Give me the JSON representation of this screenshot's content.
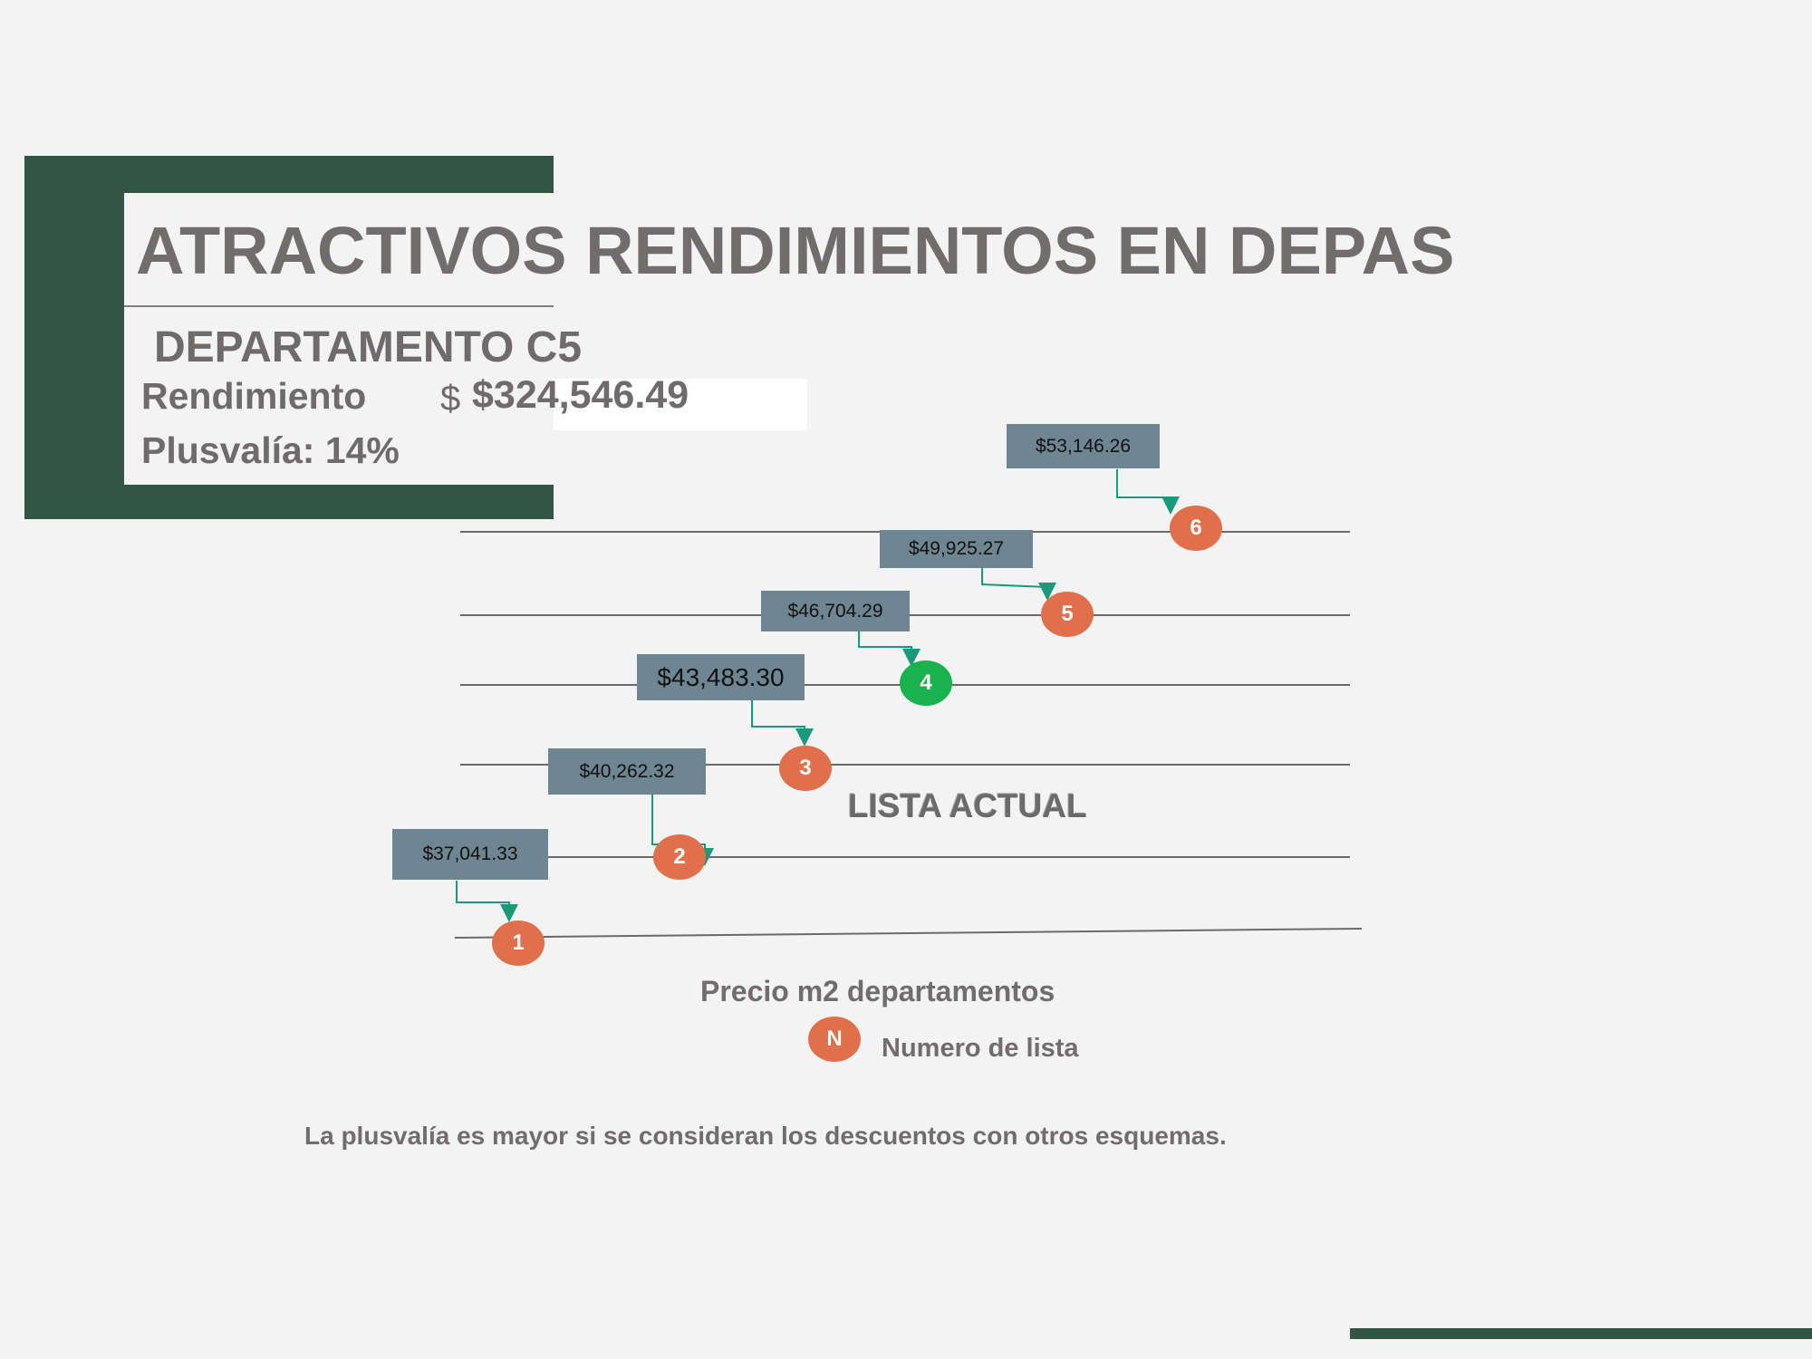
{
  "title": "ATRACTIVOS RENDIMIENTOS EN DEPAS",
  "department": "DEPARTAMENTO C5",
  "rendimiento_label": "Rendimiento",
  "rendimiento_currency": "$",
  "rendimiento_value": "$324,546.49",
  "plusvalia_label": "Plusvalía: 14%",
  "lists": [
    {
      "number": "1",
      "price": "$37,041.33",
      "current": false
    },
    {
      "number": "2",
      "price": "$40,262.32",
      "current": false
    },
    {
      "number": "3",
      "price": "$43,483.30",
      "current": false
    },
    {
      "number": "4",
      "price": "$46,704.29",
      "current": true
    },
    {
      "number": "5",
      "price": "$49,925.27",
      "current": false
    },
    {
      "number": "6",
      "price": "$53,146.26",
      "current": false
    }
  ],
  "current_list_label": "LISTA ACTUAL",
  "legend": {
    "title": "Precio m2 departamentos",
    "badge": "N",
    "label": "Numero de lista"
  },
  "footnote": "La plusvalía es mayor si se consideran los descuentos con otros esquemas.",
  "colors": {
    "dark_green": "#335545",
    "badge_orange": "#e0704c",
    "badge_current": "#19b24f",
    "price_box": "#6e8592",
    "arrow": "#1a9a7a",
    "text_gray": "#716d6d"
  }
}
